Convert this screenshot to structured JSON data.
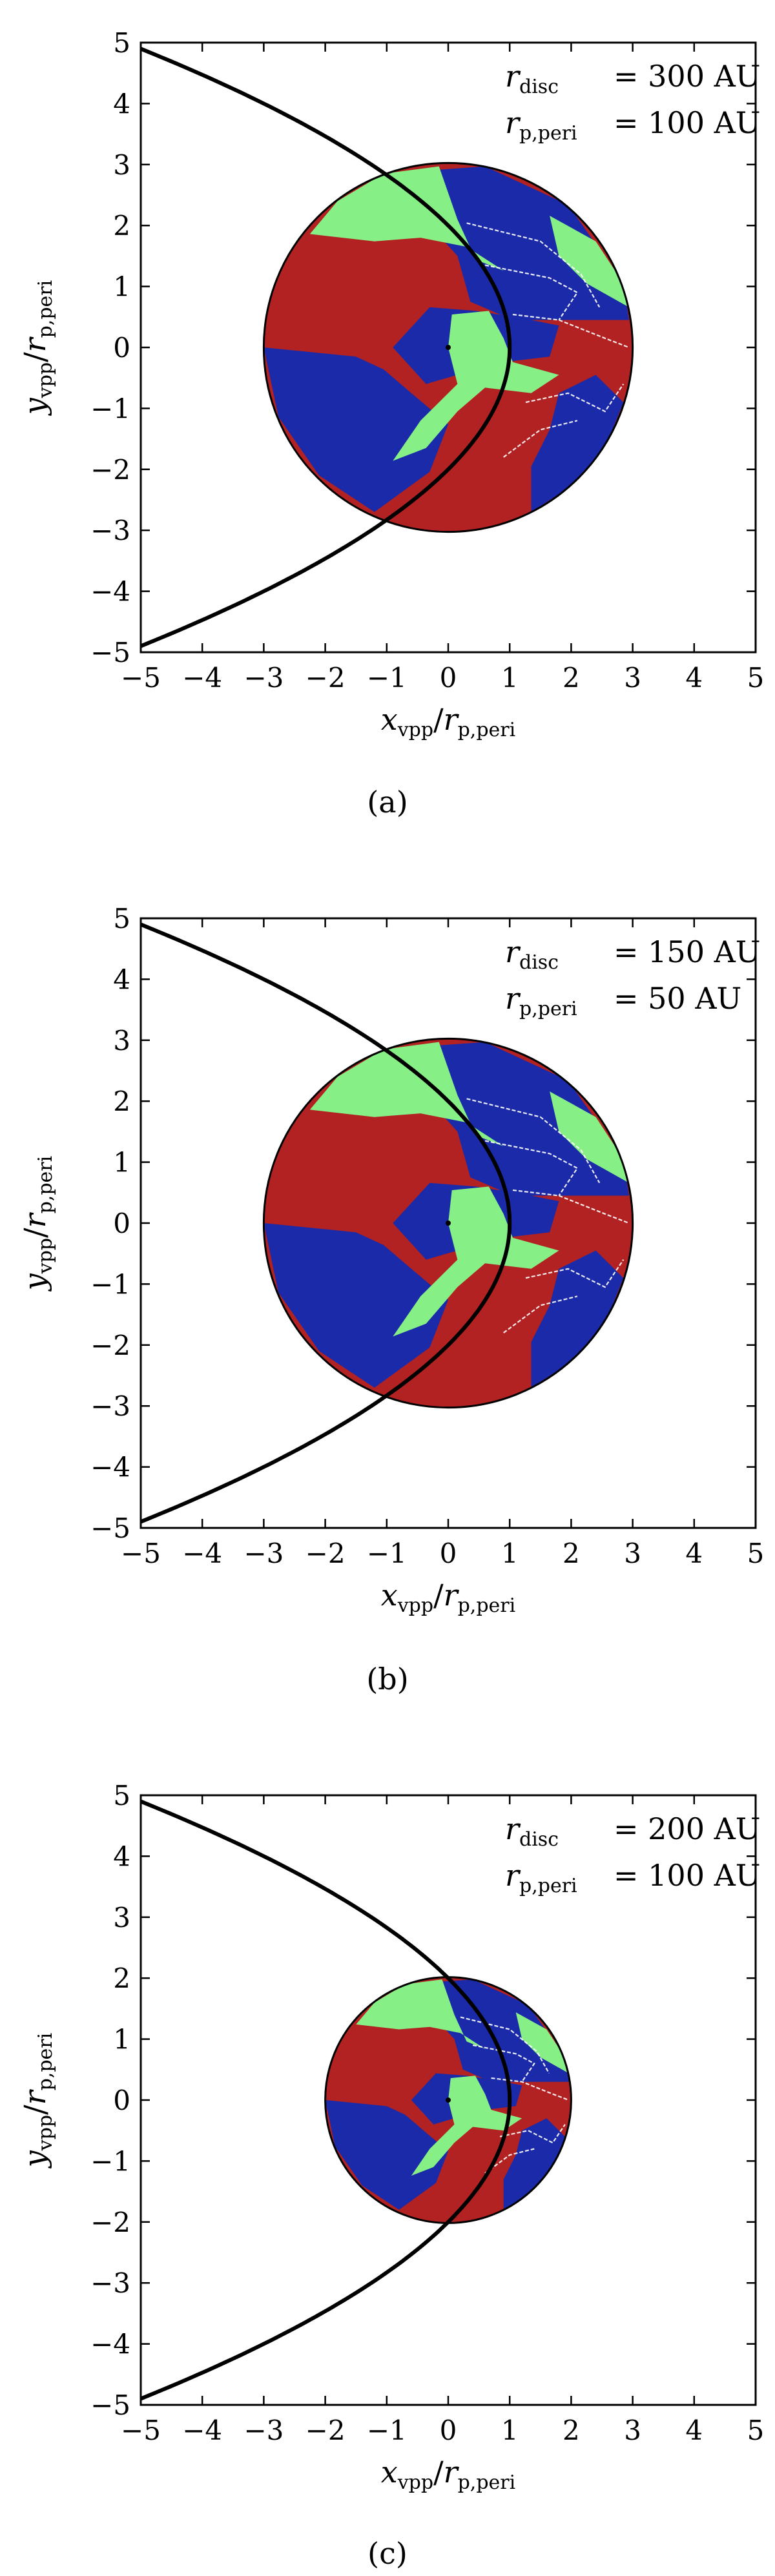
{
  "colors": {
    "red": "#b22222",
    "blue": "#1a2aa8",
    "green": "#86f086",
    "white": "#ffffff",
    "black": "#000000"
  },
  "chart_data": [
    {
      "type": "region-map",
      "caption": "(a)",
      "xlabel": {
        "var": "x",
        "sub": "vpp",
        "slash": "/",
        "r": "r",
        "rsub": "p,peri"
      },
      "ylabel": {
        "var": "y",
        "sub": "vpp",
        "slash": "/",
        "r": "r",
        "rsub": "p,peri"
      },
      "xlim": [
        -5,
        5
      ],
      "ylim": [
        -5,
        5
      ],
      "xticks": [
        "−5",
        "−4",
        "−3",
        "−2",
        "−1",
        "0",
        "1",
        "2",
        "3",
        "4",
        "5"
      ],
      "yticks": [
        "5",
        "4",
        "3",
        "2",
        "1",
        "0",
        "−1",
        "−2",
        "−3",
        "−4",
        "−5"
      ],
      "disc_radius": 3,
      "orbit_pericentre": 1,
      "annotations": [
        {
          "label": "r",
          "sub": "disc",
          "value": "= 300 AU"
        },
        {
          "label": "r",
          "sub": "p,peri",
          "value": "= 100 AU"
        }
      ]
    },
    {
      "type": "region-map",
      "caption": "(b)",
      "xlabel": {
        "var": "x",
        "sub": "vpp",
        "slash": "/",
        "r": "r",
        "rsub": "p,peri"
      },
      "ylabel": {
        "var": "y",
        "sub": "vpp",
        "slash": "/",
        "r": "r",
        "rsub": "p,peri"
      },
      "xlim": [
        -5,
        5
      ],
      "ylim": [
        -5,
        5
      ],
      "xticks": [
        "−5",
        "−4",
        "−3",
        "−2",
        "−1",
        "0",
        "1",
        "2",
        "3",
        "4",
        "5"
      ],
      "yticks": [
        "5",
        "4",
        "3",
        "2",
        "1",
        "0",
        "−1",
        "−2",
        "−3",
        "−4",
        "−5"
      ],
      "disc_radius": 3,
      "orbit_pericentre": 1,
      "annotations": [
        {
          "label": "r",
          "sub": "disc",
          "value": "= 150 AU"
        },
        {
          "label": "r",
          "sub": "p,peri",
          "value": "=   50 AU"
        }
      ]
    },
    {
      "type": "region-map",
      "caption": "(c)",
      "xlabel": {
        "var": "x",
        "sub": "vpp",
        "slash": "/",
        "r": "r",
        "rsub": "p,peri"
      },
      "ylabel": {
        "var": "y",
        "sub": "vpp",
        "slash": "/",
        "r": "r",
        "rsub": "p,peri"
      },
      "xlim": [
        -5,
        5
      ],
      "ylim": [
        -5,
        5
      ],
      "xticks": [
        "−5",
        "−4",
        "−3",
        "−2",
        "−1",
        "0",
        "1",
        "2",
        "3",
        "4",
        "5"
      ],
      "yticks": [
        "5",
        "4",
        "3",
        "2",
        "1",
        "0",
        "−1",
        "−2",
        "−3",
        "−4",
        "−5"
      ],
      "disc_radius": 2,
      "orbit_pericentre": 1,
      "annotations": [
        {
          "label": "r",
          "sub": "disc",
          "value": "= 200 AU"
        },
        {
          "label": "r",
          "sub": "p,peri",
          "value": "= 100 AU"
        }
      ]
    }
  ]
}
